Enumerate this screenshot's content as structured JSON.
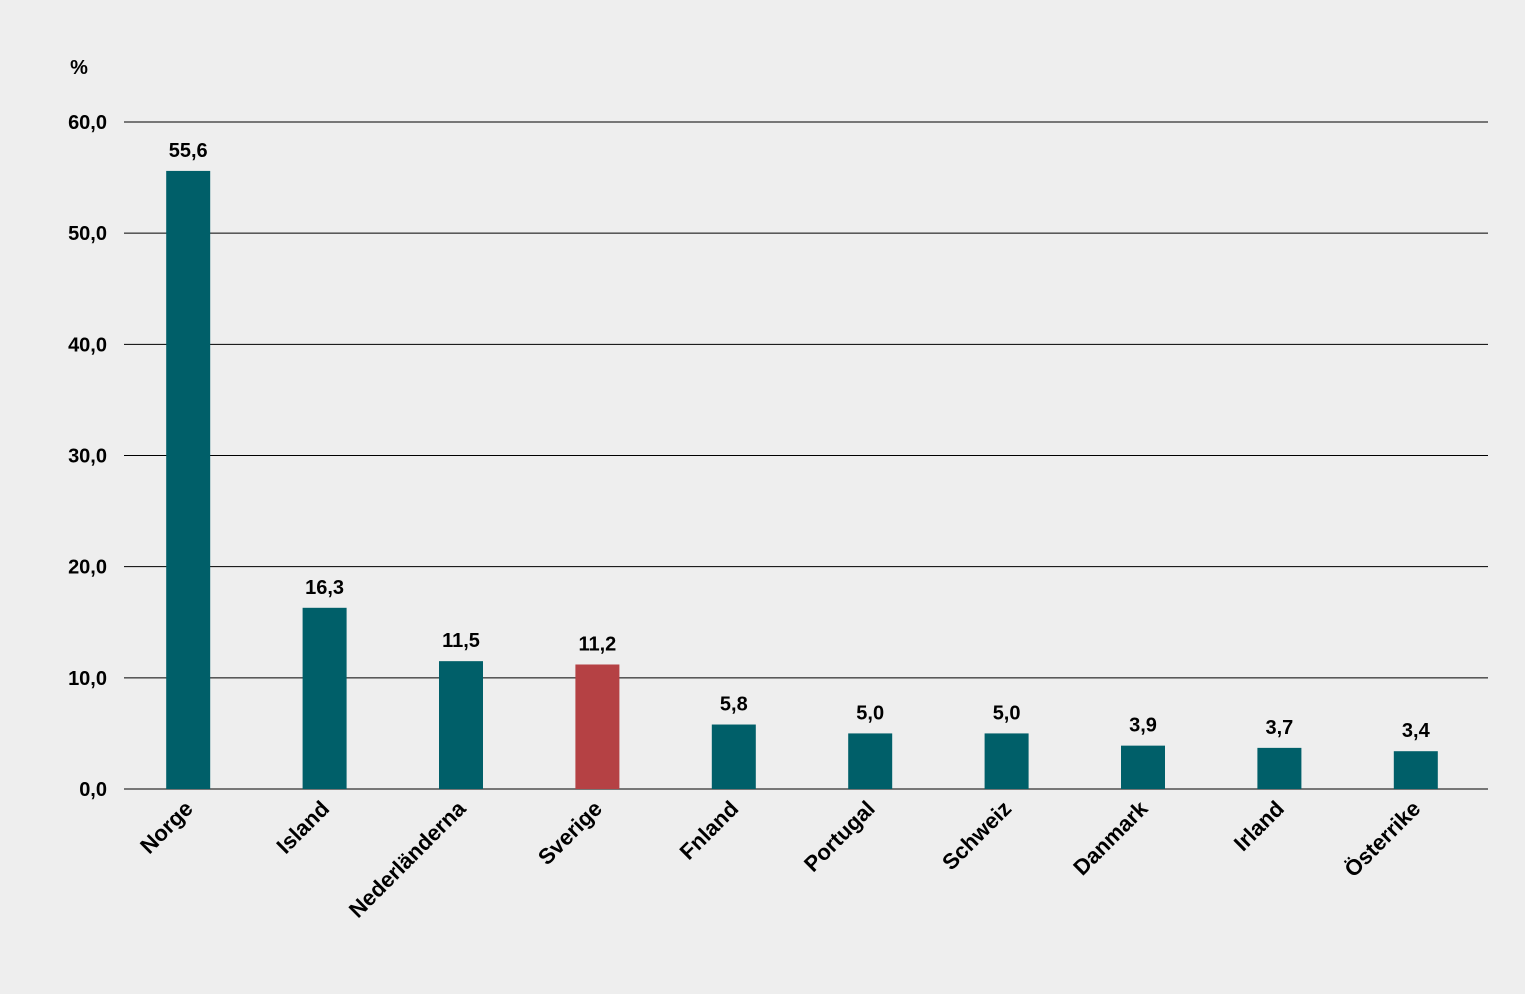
{
  "chart_data": {
    "type": "bar",
    "ylabel": "%",
    "ylim": [
      0,
      60
    ],
    "yticks": [
      "0,0",
      "10,0",
      "20,0",
      "30,0",
      "40,0",
      "50,0",
      "60,0"
    ],
    "grid": true,
    "categories": [
      "Norge",
      "Island",
      "Nederländerna",
      "Sverige",
      "Fnland",
      "Portugal",
      "Schweiz",
      "Danmark",
      "Irland",
      "Österrike"
    ],
    "values": [
      55.6,
      16.3,
      11.5,
      11.2,
      5.8,
      5.0,
      5.0,
      3.9,
      3.7,
      3.4
    ],
    "value_labels": [
      "55,6",
      "16,3",
      "11,5",
      "11,2",
      "5,8",
      "5,0",
      "5,0",
      "3,9",
      "3,7",
      "3,4"
    ],
    "colors": {
      "default": "#005f69",
      "highlight": "#b54144",
      "grid": "#000000",
      "background": "#eeeeee"
    },
    "highlight_category": "Sverige"
  }
}
